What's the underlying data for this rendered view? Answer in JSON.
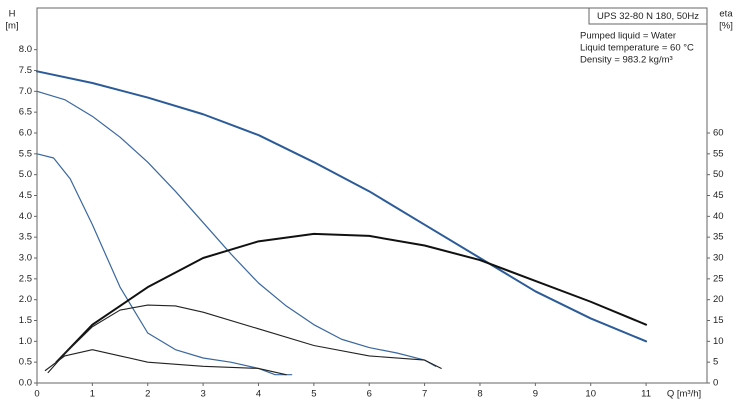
{
  "chart_data": {
    "type": "line",
    "y_label": "H",
    "y_unit": "[m]",
    "y2_label": "eta",
    "y2_unit": "[%]",
    "x_label": "Q [m³/h]",
    "title": "UPS 32-80 N 180, 50Hz",
    "annotations": [
      "Pumped liquid = Water",
      "Liquid temperature = 60 °C",
      "Density = 983.2 kg/m³"
    ],
    "xlim": [
      0,
      12.1
    ],
    "xticks": [
      0,
      1,
      2,
      3,
      4,
      5,
      6,
      7,
      8,
      9,
      10,
      11
    ],
    "ylim": [
      0,
      9.0
    ],
    "yticks": [
      {
        "value": 0,
        "label": "0.0"
      },
      {
        "value": 0.5,
        "label": "0.5"
      },
      {
        "value": 1,
        "label": "1.0"
      },
      {
        "value": 1.5,
        "label": "1.5"
      },
      {
        "value": 2,
        "label": "2.0"
      },
      {
        "value": 2.5,
        "label": "2.5"
      },
      {
        "value": 3,
        "label": "3.0"
      },
      {
        "value": 3.5,
        "label": "3.5"
      },
      {
        "value": 4,
        "label": "4.0"
      },
      {
        "value": 4.5,
        "label": "4.5"
      },
      {
        "value": 5,
        "label": "5.0"
      },
      {
        "value": 5.5,
        "label": "5.5"
      },
      {
        "value": 6,
        "label": "6.0"
      },
      {
        "value": 6.5,
        "label": "6.5"
      },
      {
        "value": 7,
        "label": "7.0"
      },
      {
        "value": 7.5,
        "label": "7.5"
      },
      {
        "value": 8,
        "label": "8.0"
      }
    ],
    "y2lim": [
      0,
      90
    ],
    "y2ticks": [
      0,
      5,
      10,
      15,
      20,
      25,
      30,
      35,
      40,
      45,
      50,
      55,
      60
    ],
    "grid": false,
    "series": [
      {
        "color": "#2b5b98",
        "line_width": 2,
        "axis": "y",
        "x": [
          0,
          1,
          2,
          3,
          4,
          5,
          6,
          7,
          8,
          9,
          10,
          11
        ],
        "values": [
          7.48,
          7.2,
          6.85,
          6.45,
          5.95,
          5.3,
          4.6,
          3.8,
          3.0,
          2.2,
          1.55,
          1.0
        ]
      },
      {
        "color": "#3a679f",
        "line_width": 1.2,
        "axis": "y",
        "x": [
          0,
          0.5,
          1,
          1.5,
          2,
          2.5,
          3,
          3.5,
          4,
          4.5,
          5,
          5.5,
          6,
          6.5,
          7,
          7.2
        ],
        "values": [
          7.0,
          6.8,
          6.4,
          5.9,
          5.3,
          4.6,
          3.85,
          3.1,
          2.4,
          1.85,
          1.4,
          1.05,
          0.85,
          0.72,
          0.55,
          0.4
        ]
      },
      {
        "color": "#3a679f",
        "line_width": 1.2,
        "axis": "y",
        "x": [
          0,
          0.3,
          0.6,
          1,
          1.5,
          2,
          2.5,
          3,
          3.5,
          4,
          4.3,
          4.6
        ],
        "values": [
          5.5,
          5.4,
          4.9,
          3.8,
          2.3,
          1.2,
          0.8,
          0.6,
          0.5,
          0.35,
          0.2,
          0.2
        ]
      },
      {
        "color": "#111111",
        "line_width": 2,
        "axis": "y2",
        "x": [
          0.35,
          1,
          2,
          3,
          4,
          5,
          6,
          7,
          8,
          9,
          10,
          11
        ],
        "values": [
          5,
          14,
          23,
          30,
          34,
          35.8,
          35.3,
          33,
          29.5,
          24.5,
          19.5,
          14
        ]
      },
      {
        "color": "#222222",
        "line_width": 1.1,
        "axis": "y2",
        "x": [
          0.2,
          0.5,
          1,
          1.5,
          2,
          2.5,
          3,
          4,
          5,
          6,
          7,
          7.3
        ],
        "values": [
          2.5,
          7,
          13.5,
          17.5,
          18.7,
          18.5,
          17,
          13,
          9,
          6.5,
          5.5,
          3.5
        ]
      },
      {
        "color": "#222222",
        "line_width": 1.1,
        "axis": "y2",
        "x": [
          0.15,
          0.5,
          1,
          1.5,
          2,
          3,
          4,
          4.5
        ],
        "values": [
          3,
          6.5,
          8,
          6.5,
          5,
          4,
          3.5,
          2
        ]
      }
    ]
  }
}
